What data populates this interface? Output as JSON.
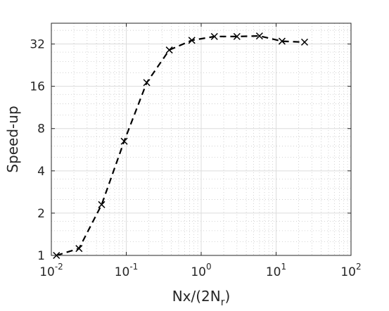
{
  "chart_data": {
    "type": "line",
    "x_scale": "log",
    "y_scale": "log2",
    "xlim": [
      0.01,
      100
    ],
    "ylim": [
      1,
      45
    ],
    "grid": true,
    "minor_grid": true,
    "xlabel": {
      "main": "Nx/(2N",
      "sub": "r",
      "end": ")"
    },
    "ylabel": "Speed-up",
    "x_ticks": [
      {
        "value": 0.01,
        "base": "10",
        "exp": "-2"
      },
      {
        "value": 0.1,
        "base": "10",
        "exp": "-1"
      },
      {
        "value": 1,
        "base": "10",
        "exp": "0"
      },
      {
        "value": 10,
        "base": "10",
        "exp": "1"
      },
      {
        "value": 100,
        "base": "10",
        "exp": "2"
      }
    ],
    "y_ticks": [
      {
        "value": 1,
        "label": "1"
      },
      {
        "value": 2,
        "label": "2"
      },
      {
        "value": 4,
        "label": "4"
      },
      {
        "value": 8,
        "label": "8"
      },
      {
        "value": 16,
        "label": "16"
      },
      {
        "value": 32,
        "label": "32"
      }
    ],
    "series": [
      {
        "line_style": "dashed",
        "marker": "x",
        "color": "#000000",
        "points": [
          {
            "x": 0.0117,
            "y": 1.0
          },
          {
            "x": 0.0234,
            "y": 1.12
          },
          {
            "x": 0.0469,
            "y": 2.3
          },
          {
            "x": 0.0938,
            "y": 6.5
          },
          {
            "x": 0.1875,
            "y": 17.0
          },
          {
            "x": 0.375,
            "y": 29.0
          },
          {
            "x": 0.75,
            "y": 34.0
          },
          {
            "x": 1.5,
            "y": 36.2
          },
          {
            "x": 3.0,
            "y": 36.2
          },
          {
            "x": 6.0,
            "y": 36.5
          },
          {
            "x": 12.0,
            "y": 33.5
          },
          {
            "x": 24.0,
            "y": 33.0
          }
        ]
      }
    ]
  }
}
